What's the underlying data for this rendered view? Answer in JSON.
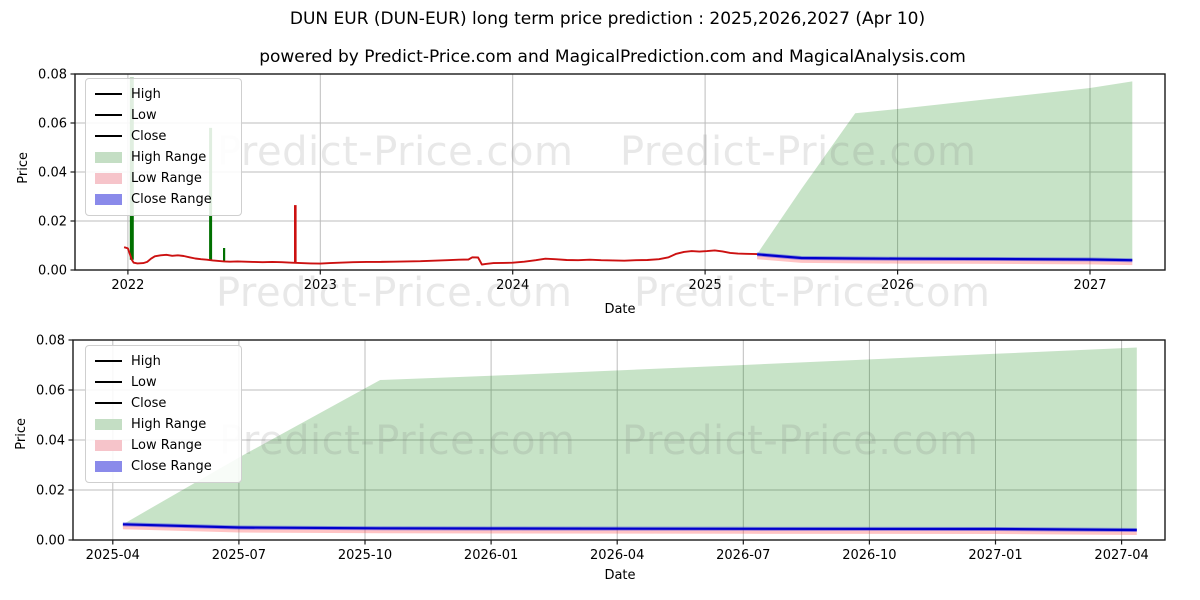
{
  "header": {
    "title": "DUN EUR (DUN-EUR) long term price prediction : 2025,2026,2027 (Apr 10)",
    "subtitle": "powered by Predict-Price.com and MagicalPrediction.com and MagicalAnalysis.com"
  },
  "watermark": {
    "text": "Predict-Price.com"
  },
  "legend": {
    "items": [
      "High",
      "Low",
      "Close",
      "High Range",
      "Low Range",
      "Close Range"
    ]
  },
  "colors": {
    "high_line": "#007000",
    "low_line": "#cc1111",
    "close_line": "#0000cc",
    "high_range_fill": "rgba(0,128,0,0.22)",
    "low_range_fill": "rgba(255,70,70,0.32)",
    "close_range_fill": "rgba(45,45,230,0.45)",
    "grid": "#bcbcbc",
    "axis": "#1a1a1a",
    "watermark_gray": "#d6d6d6"
  },
  "chart_data": [
    {
      "type": "line",
      "title": "DUN-EUR historical prices with 2025-2027 prediction ranges",
      "xlabel": "Date",
      "ylabel": "Price",
      "xlim": [
        2021.725,
        2027.39
      ],
      "ylim": [
        0,
        0.08
      ],
      "grid": true,
      "legend_position": "upper left",
      "yticks": [
        {
          "label": "0.00",
          "v": 0.0
        },
        {
          "label": "0.02",
          "v": 0.02
        },
        {
          "label": "0.04",
          "v": 0.04
        },
        {
          "label": "0.06",
          "v": 0.06
        },
        {
          "label": "0.08",
          "v": 0.08
        }
      ],
      "xticks": [
        {
          "label": "2022",
          "v": 2022
        },
        {
          "label": "2023",
          "v": 2023
        },
        {
          "label": "2024",
          "v": 2024
        },
        {
          "label": "2025",
          "v": 2025
        },
        {
          "label": "2026",
          "v": 2026
        },
        {
          "label": "2027",
          "v": 2027
        }
      ],
      "low_history": {
        "x": [
          2021.98,
          2022.0,
          2022.02,
          2022.03,
          2022.05,
          2022.08,
          2022.1,
          2022.12,
          2022.14,
          2022.17,
          2022.2,
          2022.23,
          2022.26,
          2022.29,
          2022.32,
          2022.35,
          2022.38,
          2022.41,
          2022.44,
          2022.47,
          2022.5,
          2022.53,
          2022.57,
          2022.61,
          2022.65,
          2022.7,
          2022.75,
          2022.8,
          2022.85,
          2022.9,
          2022.95,
          2023.0,
          2023.05,
          2023.1,
          2023.17,
          2023.24,
          2023.31,
          2023.38,
          2023.45,
          2023.52,
          2023.59,
          2023.66,
          2023.72,
          2023.77,
          2023.79,
          2023.82,
          2023.84,
          2023.86,
          2023.9,
          2023.95,
          2024.0,
          2024.06,
          2024.12,
          2024.17,
          2024.22,
          2024.28,
          2024.34,
          2024.4,
          2024.46,
          2024.52,
          2024.58,
          2024.64,
          2024.7,
          2024.76,
          2024.81,
          2024.85,
          2024.89,
          2024.93,
          2024.97,
          2025.01,
          2025.05,
          2025.09,
          2025.13,
          2025.17,
          2025.21,
          2025.27
        ],
        "y": [
          0.0093,
          0.0088,
          0.0042,
          0.003,
          0.0027,
          0.0028,
          0.0033,
          0.0046,
          0.0056,
          0.006,
          0.0062,
          0.0058,
          0.006,
          0.0057,
          0.0052,
          0.0047,
          0.0044,
          0.0042,
          0.0039,
          0.0037,
          0.0035,
          0.0034,
          0.0035,
          0.0034,
          0.0033,
          0.0032,
          0.0033,
          0.0032,
          0.003,
          0.0028,
          0.0027,
          0.0026,
          0.0028,
          0.003,
          0.0032,
          0.0033,
          0.0033,
          0.0034,
          0.0035,
          0.0036,
          0.0038,
          0.004,
          0.0042,
          0.0043,
          0.0052,
          0.0051,
          0.0022,
          0.0025,
          0.0028,
          0.0029,
          0.003,
          0.0034,
          0.004,
          0.0046,
          0.0044,
          0.0041,
          0.004,
          0.0042,
          0.004,
          0.0039,
          0.0038,
          0.004,
          0.0041,
          0.0044,
          0.0052,
          0.0066,
          0.0074,
          0.0077,
          0.0075,
          0.0077,
          0.008,
          0.0076,
          0.007,
          0.0067,
          0.0066,
          0.0065
        ]
      },
      "spikes": [
        {
          "x": 2022.02,
          "y0": 0.0042,
          "y1": 0.0785,
          "series": "high",
          "w": 4
        },
        {
          "x": 2022.43,
          "y0": 0.004,
          "y1": 0.058,
          "series": "high",
          "w": 3
        },
        {
          "x": 2022.5,
          "y0": 0.0035,
          "y1": 0.009,
          "series": "high",
          "w": 2.2
        },
        {
          "x": 2022.87,
          "y0": 0.0029,
          "y1": 0.0265,
          "series": "low",
          "w": 2.6
        }
      ],
      "prediction": {
        "x": [
          2025.27,
          2025.5,
          2025.78,
          2026.0,
          2026.5,
          2027.0,
          2027.22
        ],
        "high_top": [
          0.0065,
          0.033,
          0.064,
          0.0657,
          0.07,
          0.0743,
          0.077
        ],
        "close": [
          0.0064,
          0.0049,
          0.0047,
          0.0046,
          0.0045,
          0.0043,
          0.004
        ],
        "close_band": 0.0008,
        "low_band": 0.002
      }
    },
    {
      "type": "line",
      "title": "DUN-EUR prediction zoom 2025-04 to 2027-04",
      "xlabel": "Date",
      "ylabel": "Price",
      "xlim": [
        2025.171,
        2027.336
      ],
      "ylim": [
        0,
        0.08
      ],
      "grid": true,
      "legend_position": "upper left",
      "yticks": [
        {
          "label": "0.00",
          "v": 0.0
        },
        {
          "label": "0.02",
          "v": 0.02
        },
        {
          "label": "0.04",
          "v": 0.04
        },
        {
          "label": "0.06",
          "v": 0.06
        },
        {
          "label": "0.08",
          "v": 0.08
        }
      ],
      "xticks": [
        {
          "label": "2025-04",
          "v": 2025.25
        },
        {
          "label": "2025-07",
          "v": 2025.5
        },
        {
          "label": "2025-10",
          "v": 2025.75
        },
        {
          "label": "2026-01",
          "v": 2026.0
        },
        {
          "label": "2026-04",
          "v": 2026.25
        },
        {
          "label": "2026-07",
          "v": 2026.5
        },
        {
          "label": "2026-10",
          "v": 2026.75
        },
        {
          "label": "2027-01",
          "v": 2027.0
        },
        {
          "label": "2027-04",
          "v": 2027.25
        }
      ],
      "prediction": {
        "x": [
          2025.27,
          2025.5,
          2025.78,
          2026.0,
          2026.5,
          2027.0,
          2027.28
        ],
        "high_top": [
          0.0063,
          0.033,
          0.064,
          0.0657,
          0.07,
          0.0745,
          0.077
        ],
        "close": [
          0.0063,
          0.005,
          0.0047,
          0.0046,
          0.0045,
          0.0044,
          0.004
        ],
        "close_band": 0.0008,
        "low_band": 0.002
      }
    }
  ]
}
